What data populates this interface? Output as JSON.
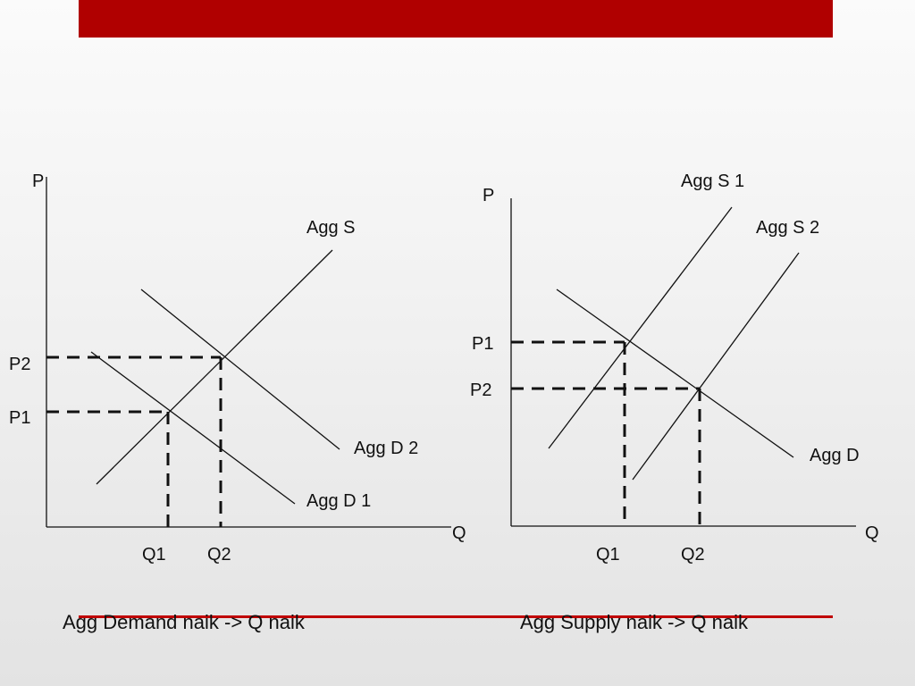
{
  "colors": {
    "accent_bar": "#b00000",
    "rule": "#c00000",
    "text": "#111111"
  },
  "left_graph": {
    "y_axis_label": "P",
    "x_axis_label": "Q",
    "supply_label": "Agg S",
    "demand1_label": "Agg  D 1",
    "demand2_label": "Agg D 2",
    "p1_label": "P1",
    "p2_label": "P2",
    "q1_label": "Q1",
    "q2_label": "Q2",
    "caption": "Agg Demand naik -> Q naik"
  },
  "right_graph": {
    "y_axis_label": "P",
    "x_axis_label": "Q",
    "supply1_label": "Agg  S 1",
    "supply2_label": "Agg  S 2",
    "demand_label": "Agg D",
    "p1_label": "P1",
    "p2_label": "P2",
    "q1_label": "Q1",
    "q2_label": "Q2",
    "caption": "Agg Supply naik -> Q naik"
  }
}
